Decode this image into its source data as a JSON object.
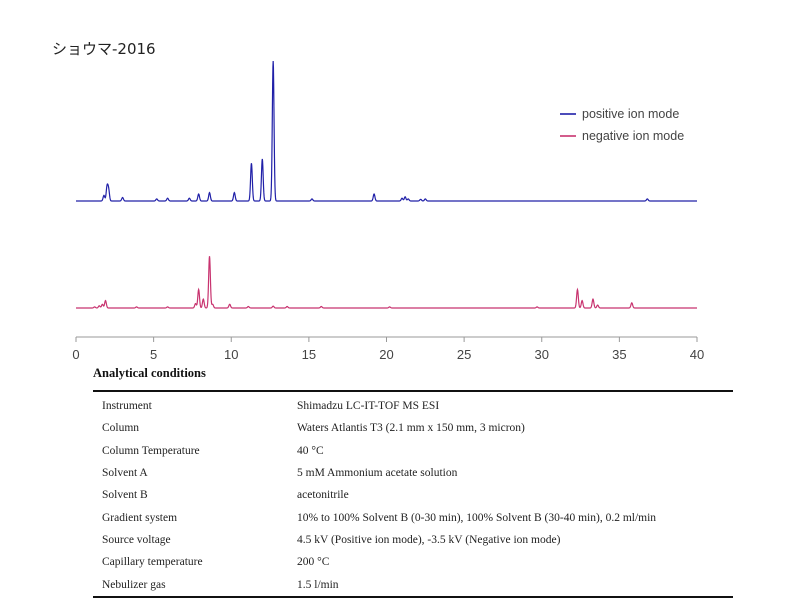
{
  "chart_data": {
    "type": "line",
    "title": "ショウマ-2016",
    "xlabel": "",
    "ylabel": "",
    "xlim": [
      0,
      40
    ],
    "x_ticks": [
      "0",
      "5",
      "10",
      "15",
      "20",
      "25",
      "30",
      "35",
      "40"
    ],
    "grid": false,
    "legend_position": "top-right",
    "series": [
      {
        "name": "positive ion mode",
        "color": "#2020a8",
        "peaks": [
          [
            1.8,
            0.04
          ],
          [
            2.0,
            0.1
          ],
          [
            2.1,
            0.08
          ],
          [
            3.0,
            0.025
          ],
          [
            5.2,
            0.015
          ],
          [
            5.9,
            0.02
          ],
          [
            7.3,
            0.02
          ],
          [
            7.9,
            0.05
          ],
          [
            8.6,
            0.06
          ],
          [
            10.2,
            0.06
          ],
          [
            11.3,
            0.27
          ],
          [
            12.0,
            0.3
          ],
          [
            12.7,
            1.0
          ],
          [
            15.2,
            0.015
          ],
          [
            19.2,
            0.05
          ],
          [
            21.0,
            0.02
          ],
          [
            21.2,
            0.03
          ],
          [
            21.4,
            0.015
          ],
          [
            22.2,
            0.012
          ],
          [
            22.5,
            0.015
          ],
          [
            36.8,
            0.015
          ]
        ]
      },
      {
        "name": "negative ion mode",
        "color": "#c8336f",
        "peaks": [
          [
            1.2,
            0.015
          ],
          [
            1.5,
            0.03
          ],
          [
            1.7,
            0.05
          ],
          [
            1.9,
            0.1
          ],
          [
            3.9,
            0.015
          ],
          [
            5.9,
            0.015
          ],
          [
            7.7,
            0.06
          ],
          [
            7.9,
            0.25
          ],
          [
            8.2,
            0.12
          ],
          [
            8.6,
            0.7
          ],
          [
            8.8,
            0.05
          ],
          [
            9.9,
            0.05
          ],
          [
            11.1,
            0.02
          ],
          [
            12.7,
            0.025
          ],
          [
            13.6,
            0.02
          ],
          [
            15.8,
            0.02
          ],
          [
            20.2,
            0.015
          ],
          [
            29.7,
            0.015
          ],
          [
            32.3,
            0.25
          ],
          [
            32.6,
            0.1
          ],
          [
            33.3,
            0.12
          ],
          [
            33.6,
            0.04
          ],
          [
            35.8,
            0.07
          ]
        ]
      }
    ]
  },
  "conditions": {
    "heading": "Analytical conditions",
    "rows": [
      {
        "label": "Instrument",
        "value": "Shimadzu LC-IT-TOF MS ESI"
      },
      {
        "label": "Column",
        "value": "Waters Atlantis T3 (2.1 mm x 150 mm, 3 micron)"
      },
      {
        "label": "Column Temperature",
        "value": "40 °C"
      },
      {
        "label": "Solvent A",
        "value": "5 mM Ammonium acetate solution"
      },
      {
        "label": "Solvent B",
        "value": "acetonitrile"
      },
      {
        "label": "Gradient system",
        "value": "10% to 100% Solvent B (0-30 min), 100% Solvent B (30-40 min), 0.2 ml/min"
      },
      {
        "label": "Source voltage",
        "value": "4.5 kV (Positive ion mode), -3.5 kV (Negative ion mode)"
      },
      {
        "label": "Capillary temperature",
        "value": "200 °C"
      },
      {
        "label": "Nebulizer gas",
        "value": "1.5 l/min"
      }
    ]
  }
}
